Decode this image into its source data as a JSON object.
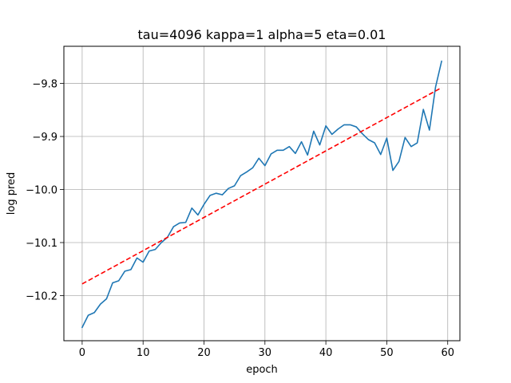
{
  "chart_data": {
    "type": "line",
    "title": "tau=4096 kappa=1 alpha=5 eta=0.01",
    "xlabel": "epoch",
    "ylabel": "log pred",
    "xlim": [
      -3,
      62
    ],
    "ylim": [
      -10.285,
      -9.73
    ],
    "xticks": [
      0,
      10,
      20,
      30,
      40,
      50,
      60
    ],
    "yticks": [
      -10.2,
      -10.1,
      -10.0,
      -9.9,
      -9.8
    ],
    "ytick_labels": [
      "−10.2",
      "−10.1",
      "−10.0",
      "−9.9",
      "−9.8"
    ],
    "grid": true,
    "series": [
      {
        "style": "solid",
        "color": "#1f77b4",
        "x": [
          0,
          1,
          2,
          3,
          4,
          5,
          6,
          7,
          8,
          9,
          10,
          11,
          12,
          13,
          14,
          15,
          16,
          17,
          18,
          19,
          20,
          21,
          22,
          23,
          24,
          25,
          26,
          27,
          28,
          29,
          30,
          31,
          32,
          33,
          34,
          35,
          36,
          37,
          38,
          39,
          40,
          41,
          42,
          43,
          44,
          45,
          46,
          47,
          48,
          49,
          50,
          51,
          52,
          53,
          54,
          55,
          56,
          57,
          58,
          59
        ],
        "y": [
          -10.26,
          -10.237,
          -10.232,
          -10.216,
          -10.206,
          -10.176,
          -10.172,
          -10.154,
          -10.151,
          -10.129,
          -10.137,
          -10.116,
          -10.113,
          -10.1,
          -10.09,
          -10.07,
          -10.063,
          -10.062,
          -10.035,
          -10.048,
          -10.028,
          -10.011,
          -10.007,
          -10.01,
          -9.998,
          -9.993,
          -9.974,
          -9.967,
          -9.959,
          -9.941,
          -9.955,
          -9.933,
          -9.926,
          -9.926,
          -9.919,
          -9.932,
          -9.91,
          -9.935,
          -9.89,
          -9.916,
          -9.88,
          -9.896,
          -9.886,
          -9.878,
          -9.878,
          -9.882,
          -9.895,
          -9.906,
          -9.912,
          -9.934,
          -9.903,
          -9.964,
          -9.947,
          -9.902,
          -9.919,
          -9.912,
          -9.849,
          -9.888,
          -9.807,
          -9.758
        ]
      },
      {
        "style": "dashed",
        "color": "#ff0000",
        "x": [
          0,
          59
        ],
        "y": [
          -10.178,
          -9.808
        ]
      }
    ]
  }
}
